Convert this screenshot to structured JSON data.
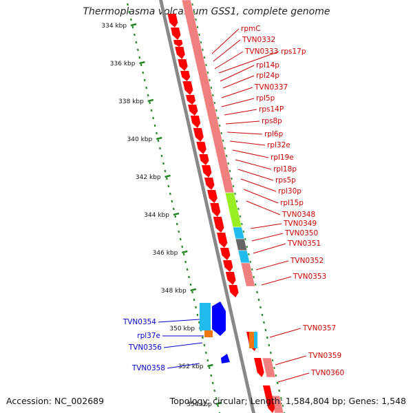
{
  "header": {
    "title": "Thermoplasma volcanium GSS1, complete genome"
  },
  "ruler": {
    "unit": "kbp",
    "tick_labels": [
      "334 kbp",
      "336 kbp",
      "338 kbp",
      "340 kbp",
      "342 kbp",
      "344 kbp",
      "346 kbp",
      "348 kbp",
      "350 kbp",
      "352 kbp",
      "354 kbp"
    ]
  },
  "gene_labels_right": [
    "rpmC",
    "TVN0332",
    "TVN0333",
    "rps17p",
    "rpl14p",
    "rpl24p",
    "TVN0337",
    "rpl5p",
    "rps14P",
    "rps8p",
    "rpl6p",
    "rpl32e",
    "rpl19e",
    "rpl18p",
    "rps5p",
    "rpl30p",
    "rpl15p",
    "TVN0348",
    "TVN0349",
    "TVN0350",
    "TVN0351",
    "TVN0352",
    "TVN0353",
    "TVN0357",
    "TVN0359",
    "TVN0360"
  ],
  "gene_labels_left": [
    "TVN0354",
    "rpl37e",
    "TVN0356",
    "TVN0358"
  ],
  "colors": {
    "forward_gene": "#ff0000",
    "reverse_gene": "#0000ff",
    "cds_pink": "#f08080",
    "cds_lime": "#99ee22",
    "cds_cyan": "#22bbee",
    "cds_gray": "#666666",
    "cds_orange": "#ee7711",
    "backbone": "#888888",
    "ruler": "#228822",
    "label_forward": "#cc0000",
    "label_reverse": "#0000cc"
  },
  "footer": {
    "accession": "Accession: NC_002689",
    "summary": "Topology: circular; Length: 1,584,804 bp; Genes: 1,548"
  }
}
